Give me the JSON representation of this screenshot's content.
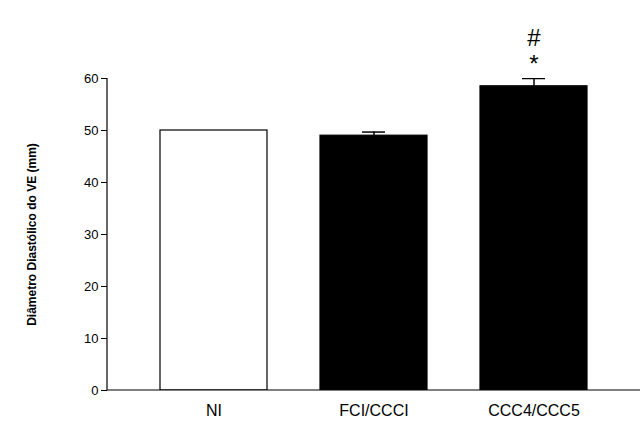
{
  "chart_data": {
    "type": "bar",
    "y_label": "Diâmetro Diastólico do VE (mm)",
    "categories": [
      "NI",
      "FCI/CCCI",
      "CCC4/CCC5"
    ],
    "values": [
      50,
      49,
      58.5
    ],
    "errors": [
      0,
      0.7,
      1.5
    ],
    "colors": [
      "#ffffff",
      "#000000",
      "#000000"
    ],
    "ylim": [
      0,
      60
    ],
    "yticks": [
      0,
      10,
      20,
      30,
      40,
      50,
      60
    ],
    "grid": false,
    "annotations": [
      {
        "category": "CCC4/CCC5",
        "text": "*"
      },
      {
        "category": "CCC4/CCC5",
        "text": "#"
      }
    ]
  }
}
